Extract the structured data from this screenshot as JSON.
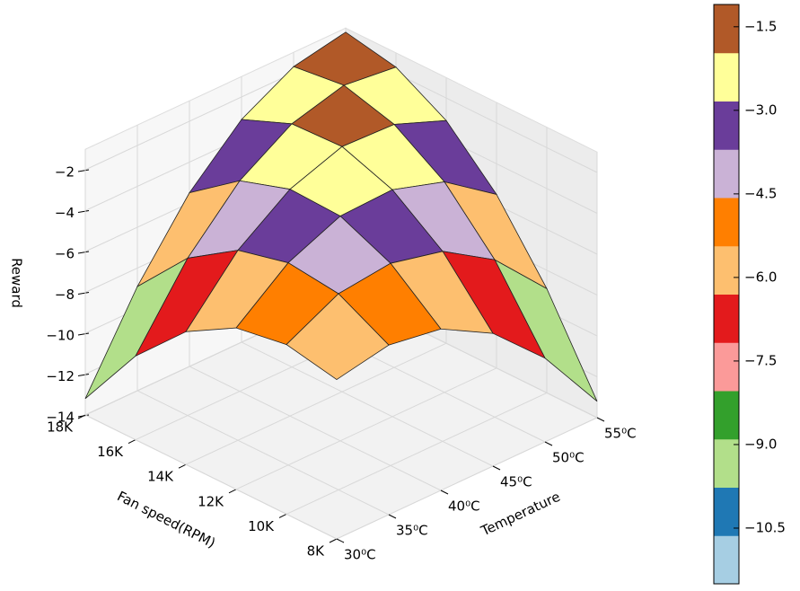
{
  "chart_data": {
    "type": "surface3d",
    "xlabel": "Fan speed(RPM)",
    "ylabel": "Temperature",
    "zlabel": "Reward",
    "xlim": [
      8000,
      18000
    ],
    "ylim": [
      30,
      55
    ],
    "zlim": [
      -14,
      -1
    ],
    "xticks": [
      {
        "value": 8000,
        "label": "8K"
      },
      {
        "value": 10000,
        "label": "10K"
      },
      {
        "value": 12000,
        "label": "12K"
      },
      {
        "value": 14000,
        "label": "14K"
      },
      {
        "value": 16000,
        "label": "16K"
      },
      {
        "value": 18000,
        "label": "18K"
      }
    ],
    "yticks": [
      {
        "value": 30,
        "label": "30⁰C"
      },
      {
        "value": 35,
        "label": "35⁰C"
      },
      {
        "value": 40,
        "label": "40⁰C"
      },
      {
        "value": 45,
        "label": "45⁰C"
      },
      {
        "value": 50,
        "label": "50⁰C"
      },
      {
        "value": 55,
        "label": "55⁰C"
      }
    ],
    "zticks": [
      {
        "value": -14,
        "label": "−14"
      },
      {
        "value": -12,
        "label": "−12"
      },
      {
        "value": -10,
        "label": "−10"
      },
      {
        "value": -8,
        "label": "−8"
      },
      {
        "value": -6,
        "label": "−6"
      },
      {
        "value": -4,
        "label": "−4"
      },
      {
        "value": -2,
        "label": "−2"
      }
    ],
    "x": [
      8000,
      10000,
      12000,
      14000,
      16000,
      18000
    ],
    "y": [
      30,
      35,
      40,
      45,
      50,
      55
    ],
    "values": [
      [
        -6.2,
        -5.7,
        -6.1,
        -7.5,
        -9.9,
        -13.2
      ],
      [
        -5.7,
        -4.4,
        -4.1,
        -4.7,
        -6.3,
        -8.9
      ],
      [
        -6.1,
        -4.1,
        -3.0,
        -2.9,
        -3.7,
        -5.5
      ],
      [
        -7.5,
        -4.7,
        -2.9,
        -2.0,
        -2.1,
        -3.1
      ],
      [
        -9.9,
        -6.3,
        -3.7,
        -2.1,
        -1.4,
        -1.7
      ],
      [
        -13.2,
        -8.9,
        -5.5,
        -3.1,
        -1.7,
        -1.2
      ]
    ],
    "colormap": [
      "#a6cee3",
      "#1f78b4",
      "#b2df8a",
      "#33a02c",
      "#fb9a99",
      "#e31a1c",
      "#fdbf6f",
      "#ff7f00",
      "#cab2d6",
      "#6a3d9a",
      "#ffff99",
      "#b15928"
    ],
    "clim": [
      -11.5,
      -1.1
    ],
    "cticks": [
      {
        "value": -1.5,
        "label": "−1.5"
      },
      {
        "value": -3.0,
        "label": "−3.0"
      },
      {
        "value": -4.5,
        "label": "−4.5"
      },
      {
        "value": -6.0,
        "label": "−6.0"
      },
      {
        "value": -7.5,
        "label": "−7.5"
      },
      {
        "value": -9.0,
        "label": "−9.0"
      },
      {
        "value": -10.5,
        "label": "−10.5"
      }
    ],
    "grid": true
  }
}
